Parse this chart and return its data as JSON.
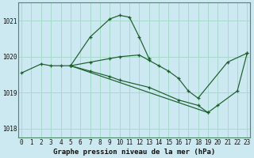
{
  "title": "Graphe pression niveau de la mer (hPa)",
  "background_color": "#cce8f0",
  "grid_color": "#a8d8cc",
  "line_color": "#1a5e2a",
  "series": [
    {
      "x": [
        0,
        2,
        3,
        4,
        5,
        7,
        9,
        10,
        11,
        12,
        13
      ],
      "y": [
        1019.55,
        1019.8,
        1019.75,
        1019.75,
        1019.75,
        1020.55,
        1021.05,
        1021.15,
        1021.1,
        1020.55,
        1019.95
      ]
    },
    {
      "x": [
        5,
        7,
        9,
        10,
        12,
        13,
        14,
        15,
        16,
        17,
        18,
        21,
        23
      ],
      "y": [
        1019.75,
        1019.85,
        1019.95,
        1020.0,
        1020.05,
        1019.9,
        1019.75,
        1019.6,
        1019.4,
        1019.05,
        1018.85,
        1019.85,
        1020.1
      ]
    },
    {
      "x": [
        5,
        7,
        9,
        10,
        13,
        16,
        18,
        19
      ],
      "y": [
        1019.75,
        1019.6,
        1019.45,
        1019.35,
        1019.15,
        1018.8,
        1018.65,
        1018.45
      ]
    },
    {
      "x": [
        5,
        19,
        20,
        22,
        23
      ],
      "y": [
        1019.75,
        1018.45,
        1018.65,
        1019.05,
        1020.1
      ]
    }
  ],
  "ylim": [
    1017.75,
    1021.5
  ],
  "yticks": [
    1018,
    1019,
    1020,
    1021
  ],
  "xticks": [
    0,
    1,
    2,
    3,
    4,
    5,
    6,
    7,
    8,
    9,
    10,
    11,
    12,
    13,
    14,
    15,
    16,
    17,
    18,
    19,
    20,
    21,
    22,
    23
  ],
  "figsize": [
    3.2,
    2.0
  ],
  "dpi": 100
}
